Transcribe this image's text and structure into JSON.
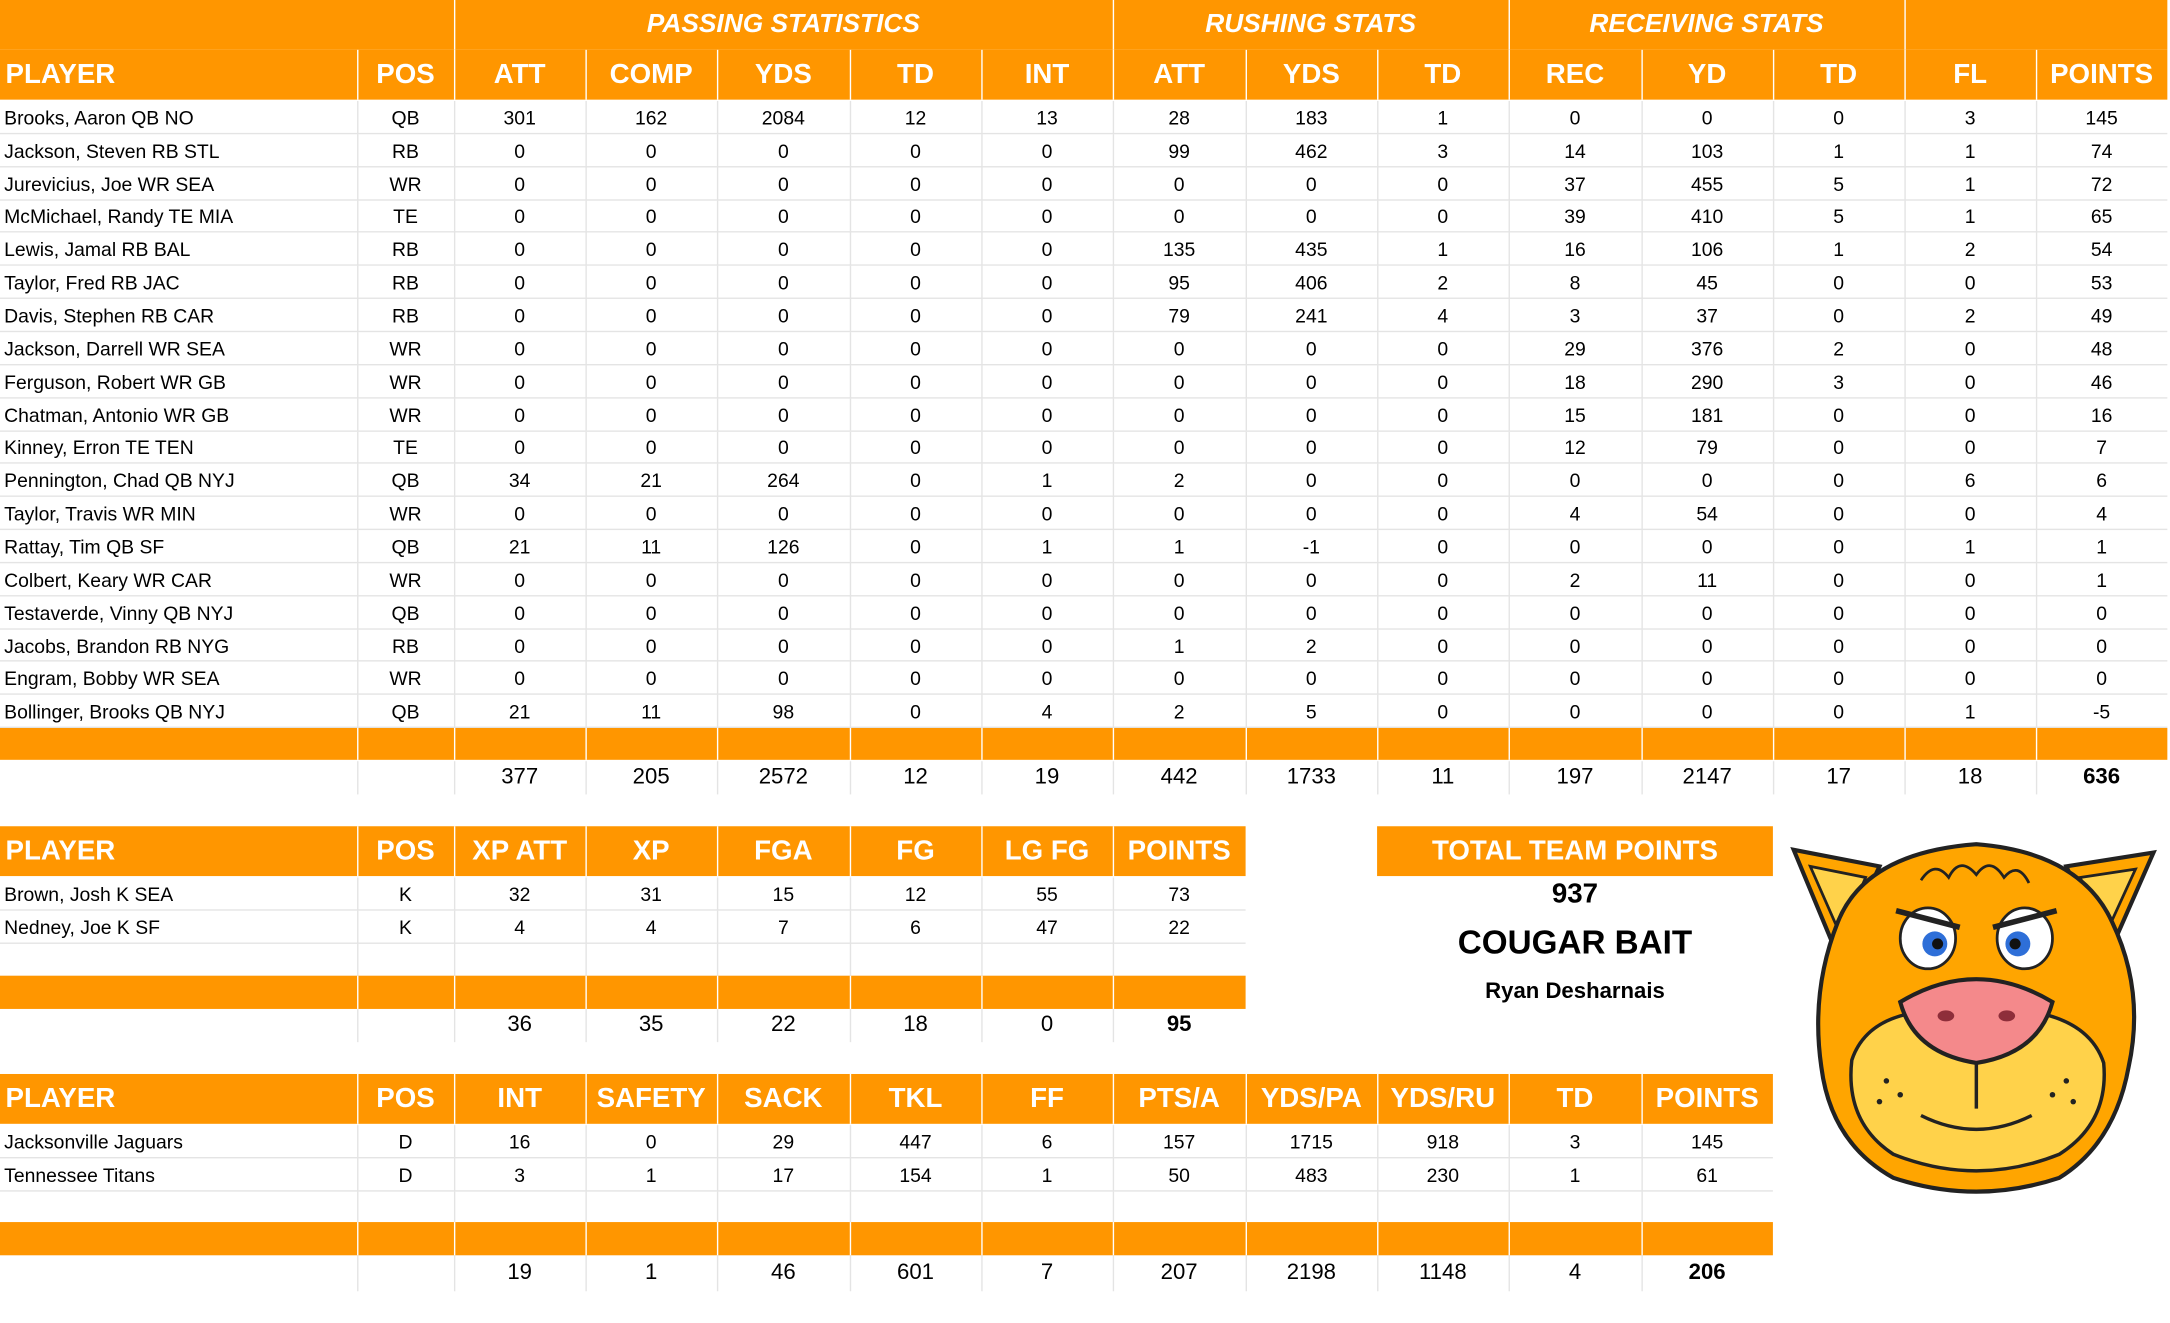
{
  "offense": {
    "group_headers": [
      "PASSING STATISTICS",
      "RUSHING STATS",
      "RECEIVING STATS"
    ],
    "columns": [
      "PLAYER",
      "POS",
      "ATT",
      "COMP",
      "YDS",
      "TD",
      "INT",
      "ATT",
      "YDS",
      "TD",
      "REC",
      "YD",
      "TD",
      "FL",
      "POINTS"
    ],
    "rows": [
      [
        "Brooks, Aaron QB NO",
        "QB",
        "301",
        "162",
        "2084",
        "12",
        "13",
        "28",
        "183",
        "1",
        "0",
        "0",
        "0",
        "3",
        "145"
      ],
      [
        "Jackson, Steven RB STL",
        "RB",
        "0",
        "0",
        "0",
        "0",
        "0",
        "99",
        "462",
        "3",
        "14",
        "103",
        "1",
        "1",
        "74"
      ],
      [
        "Jurevicius, Joe WR SEA",
        "WR",
        "0",
        "0",
        "0",
        "0",
        "0",
        "0",
        "0",
        "0",
        "37",
        "455",
        "5",
        "1",
        "72"
      ],
      [
        "McMichael, Randy TE MIA",
        "TE",
        "0",
        "0",
        "0",
        "0",
        "0",
        "0",
        "0",
        "0",
        "39",
        "410",
        "5",
        "1",
        "65"
      ],
      [
        "Lewis, Jamal RB BAL",
        "RB",
        "0",
        "0",
        "0",
        "0",
        "0",
        "135",
        "435",
        "1",
        "16",
        "106",
        "1",
        "2",
        "54"
      ],
      [
        "Taylor, Fred RB JAC",
        "RB",
        "0",
        "0",
        "0",
        "0",
        "0",
        "95",
        "406",
        "2",
        "8",
        "45",
        "0",
        "0",
        "53"
      ],
      [
        "Davis, Stephen RB CAR",
        "RB",
        "0",
        "0",
        "0",
        "0",
        "0",
        "79",
        "241",
        "4",
        "3",
        "37",
        "0",
        "2",
        "49"
      ],
      [
        "Jackson, Darrell WR SEA",
        "WR",
        "0",
        "0",
        "0",
        "0",
        "0",
        "0",
        "0",
        "0",
        "29",
        "376",
        "2",
        "0",
        "48"
      ],
      [
        "Ferguson, Robert WR GB",
        "WR",
        "0",
        "0",
        "0",
        "0",
        "0",
        "0",
        "0",
        "0",
        "18",
        "290",
        "3",
        "0",
        "46"
      ],
      [
        "Chatman, Antonio WR GB",
        "WR",
        "0",
        "0",
        "0",
        "0",
        "0",
        "0",
        "0",
        "0",
        "15",
        "181",
        "0",
        "0",
        "16"
      ],
      [
        "Kinney, Erron TE TEN",
        "TE",
        "0",
        "0",
        "0",
        "0",
        "0",
        "0",
        "0",
        "0",
        "12",
        "79",
        "0",
        "0",
        "7"
      ],
      [
        "Pennington, Chad QB NYJ",
        "QB",
        "34",
        "21",
        "264",
        "0",
        "1",
        "2",
        "0",
        "0",
        "0",
        "0",
        "0",
        "6",
        "6"
      ],
      [
        "Taylor, Travis WR MIN",
        "WR",
        "0",
        "0",
        "0",
        "0",
        "0",
        "0",
        "0",
        "0",
        "4",
        "54",
        "0",
        "0",
        "4"
      ],
      [
        "Rattay, Tim QB SF",
        "QB",
        "21",
        "11",
        "126",
        "0",
        "1",
        "1",
        "-1",
        "0",
        "0",
        "0",
        "0",
        "1",
        "1"
      ],
      [
        "Colbert, Keary WR CAR",
        "WR",
        "0",
        "0",
        "0",
        "0",
        "0",
        "0",
        "0",
        "0",
        "2",
        "11",
        "0",
        "0",
        "1"
      ],
      [
        "Testaverde, Vinny QB NYJ",
        "QB",
        "0",
        "0",
        "0",
        "0",
        "0",
        "0",
        "0",
        "0",
        "0",
        "0",
        "0",
        "0",
        "0"
      ],
      [
        "Jacobs, Brandon RB NYG",
        "RB",
        "0",
        "0",
        "0",
        "0",
        "0",
        "1",
        "2",
        "0",
        "0",
        "0",
        "0",
        "0",
        "0"
      ],
      [
        "Engram, Bobby WR SEA",
        "WR",
        "0",
        "0",
        "0",
        "0",
        "0",
        "0",
        "0",
        "0",
        "0",
        "0",
        "0",
        "0",
        "0"
      ],
      [
        "Bollinger, Brooks QB NYJ",
        "QB",
        "21",
        "11",
        "98",
        "0",
        "4",
        "2",
        "5",
        "0",
        "0",
        "0",
        "0",
        "1",
        "-5"
      ]
    ],
    "totals": [
      "",
      "",
      "377",
      "205",
      "2572",
      "12",
      "19",
      "442",
      "1733",
      "11",
      "197",
      "2147",
      "17",
      "18",
      "636"
    ]
  },
  "kickers": {
    "columns": [
      "PLAYER",
      "POS",
      "XP ATT",
      "XP",
      "FGA",
      "FG",
      "LG FG",
      "POINTS"
    ],
    "rows": [
      [
        "Brown, Josh K SEA",
        "K",
        "32",
        "31",
        "15",
        "12",
        "55",
        "73"
      ],
      [
        "Nedney, Joe K SF",
        "K",
        "4",
        "4",
        "7",
        "6",
        "47",
        "22"
      ]
    ],
    "totals": [
      "",
      "",
      "36",
      "35",
      "22",
      "18",
      "0",
      "95"
    ]
  },
  "defense": {
    "columns": [
      "PLAYER",
      "POS",
      "INT",
      "SAFETY",
      "SACK",
      "TKL",
      "FF",
      "PTS/A",
      "YDS/PA",
      "YDS/RU",
      "TD",
      "POINTS"
    ],
    "rows": [
      [
        "Jacksonville Jaguars",
        "D",
        "16",
        "0",
        "29",
        "447",
        "6",
        "157",
        "1715",
        "918",
        "3",
        "145"
      ],
      [
        "Tennessee Titans",
        "D",
        "3",
        "1",
        "17",
        "154",
        "1",
        "50",
        "483",
        "230",
        "1",
        "61"
      ]
    ],
    "totals": [
      "",
      "",
      "19",
      "1",
      "46",
      "601",
      "7",
      "207",
      "2198",
      "1148",
      "4",
      "206"
    ]
  },
  "team": {
    "total_label": "TOTAL TEAM POINTS",
    "total_points": "937",
    "team_name": "COUGAR BAIT",
    "owner": "Ryan Desharnais",
    "logo_icon": "cougar-mascot-icon"
  },
  "colors": {
    "accent": "#FF9600",
    "header_text": "#FFFFFF"
  }
}
